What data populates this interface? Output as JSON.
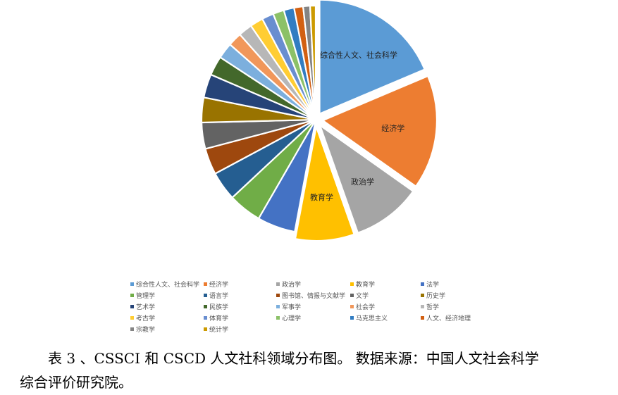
{
  "chart_data": {
    "type": "pie",
    "title": "",
    "legend_position": "bottom",
    "slices": [
      {
        "label": "综合性人文、社会科学",
        "value": 19.0,
        "color": "#5B9BD5",
        "exploded": true,
        "labeled": true
      },
      {
        "label": "经济学",
        "value": 16.5,
        "color": "#ED7D31",
        "exploded": true,
        "labeled": true
      },
      {
        "label": "政治学",
        "value": 10.0,
        "color": "#A5A5A5",
        "exploded": true,
        "labeled": true
      },
      {
        "label": "教育学",
        "value": 8.5,
        "color": "#FFC000",
        "exploded": true,
        "labeled": true
      },
      {
        "label": "法学",
        "value": 5.5,
        "color": "#4472C4",
        "exploded": false,
        "labeled": false
      },
      {
        "label": "管理学",
        "value": 4.8,
        "color": "#70AD47",
        "exploded": false,
        "labeled": false
      },
      {
        "label": "语言学",
        "value": 4.2,
        "color": "#255E91",
        "exploded": false,
        "labeled": false
      },
      {
        "label": "图书馆、情报与文献学",
        "value": 3.8,
        "color": "#9E480E",
        "exploded": false,
        "labeled": false
      },
      {
        "label": "文学",
        "value": 3.8,
        "color": "#636363",
        "exploded": false,
        "labeled": false
      },
      {
        "label": "历史学",
        "value": 3.6,
        "color": "#997300",
        "exploded": false,
        "labeled": false
      },
      {
        "label": "艺术学",
        "value": 3.4,
        "color": "#264478",
        "exploded": false,
        "labeled": false
      },
      {
        "label": "民族学",
        "value": 2.8,
        "color": "#43682B",
        "exploded": false,
        "labeled": false
      },
      {
        "label": "军事学",
        "value": 2.3,
        "color": "#7CAFDD",
        "exploded": false,
        "labeled": false
      },
      {
        "label": "社会学",
        "value": 2.0,
        "color": "#F1975A",
        "exploded": false,
        "labeled": false
      },
      {
        "label": "哲学",
        "value": 2.0,
        "color": "#B7B7B7",
        "exploded": false,
        "labeled": false
      },
      {
        "label": "考古学",
        "value": 1.9,
        "color": "#FFCD33",
        "exploded": false,
        "labeled": false
      },
      {
        "label": "体育学",
        "value": 1.7,
        "color": "#698ED0",
        "exploded": false,
        "labeled": false
      },
      {
        "label": "心理学",
        "value": 1.6,
        "color": "#8CC168",
        "exploded": false,
        "labeled": false
      },
      {
        "label": "马克思主义",
        "value": 1.5,
        "color": "#327DC2",
        "exploded": false,
        "labeled": false
      },
      {
        "label": "人文、经济地理",
        "value": 1.3,
        "color": "#D26012",
        "exploded": false,
        "labeled": false
      },
      {
        "label": "宗教学",
        "value": 1.0,
        "color": "#848484",
        "exploded": false,
        "labeled": false
      },
      {
        "label": "统计学",
        "value": 0.8,
        "color": "#CC9A00",
        "exploded": false,
        "labeled": false
      }
    ]
  },
  "caption": {
    "line1": "表 3 、CSSCI 和 CSCD 人文社科领域分布图。 数据来源：中国人文社会科学",
    "line2": "综合评价研究院。"
  }
}
